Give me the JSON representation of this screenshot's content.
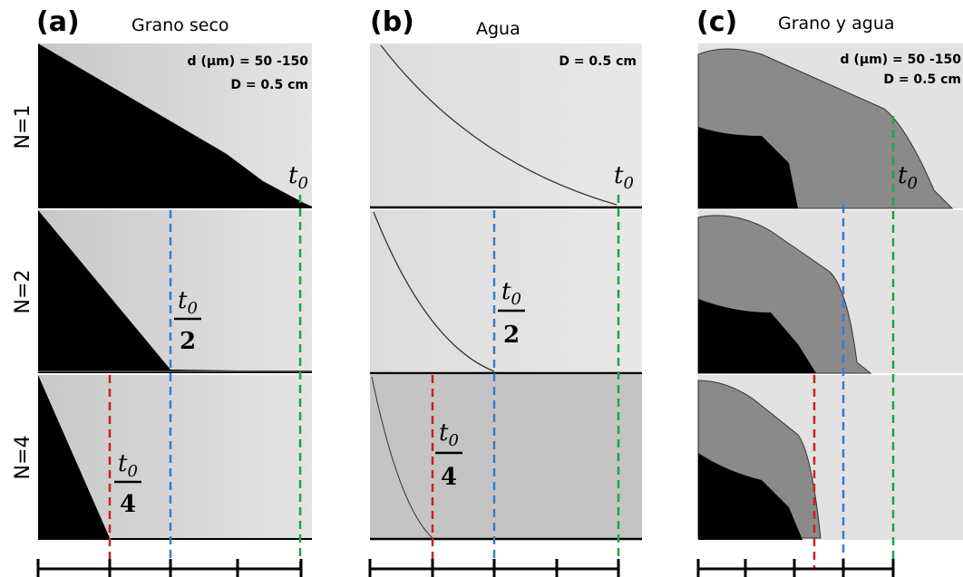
{
  "panels": [
    {
      "label": "(a)",
      "title": "Grano seco",
      "annotations": [
        "d (µm) = 50 -150",
        "D = 0.5 cm"
      ]
    },
    {
      "label": "(b)",
      "title": "Agua",
      "annotations": [
        "D = 0.5 cm"
      ]
    },
    {
      "label": "(c)",
      "title": "Grano y agua",
      "annotations": [
        "d (µm) = 50 -150",
        "D = 0.5 cm"
      ]
    }
  ],
  "rows": [
    "N=1",
    "N=2",
    "N=4"
  ],
  "time_labels": {
    "symbol": "t",
    "subscript": "0",
    "denominators": [
      "2",
      "4"
    ]
  }
}
